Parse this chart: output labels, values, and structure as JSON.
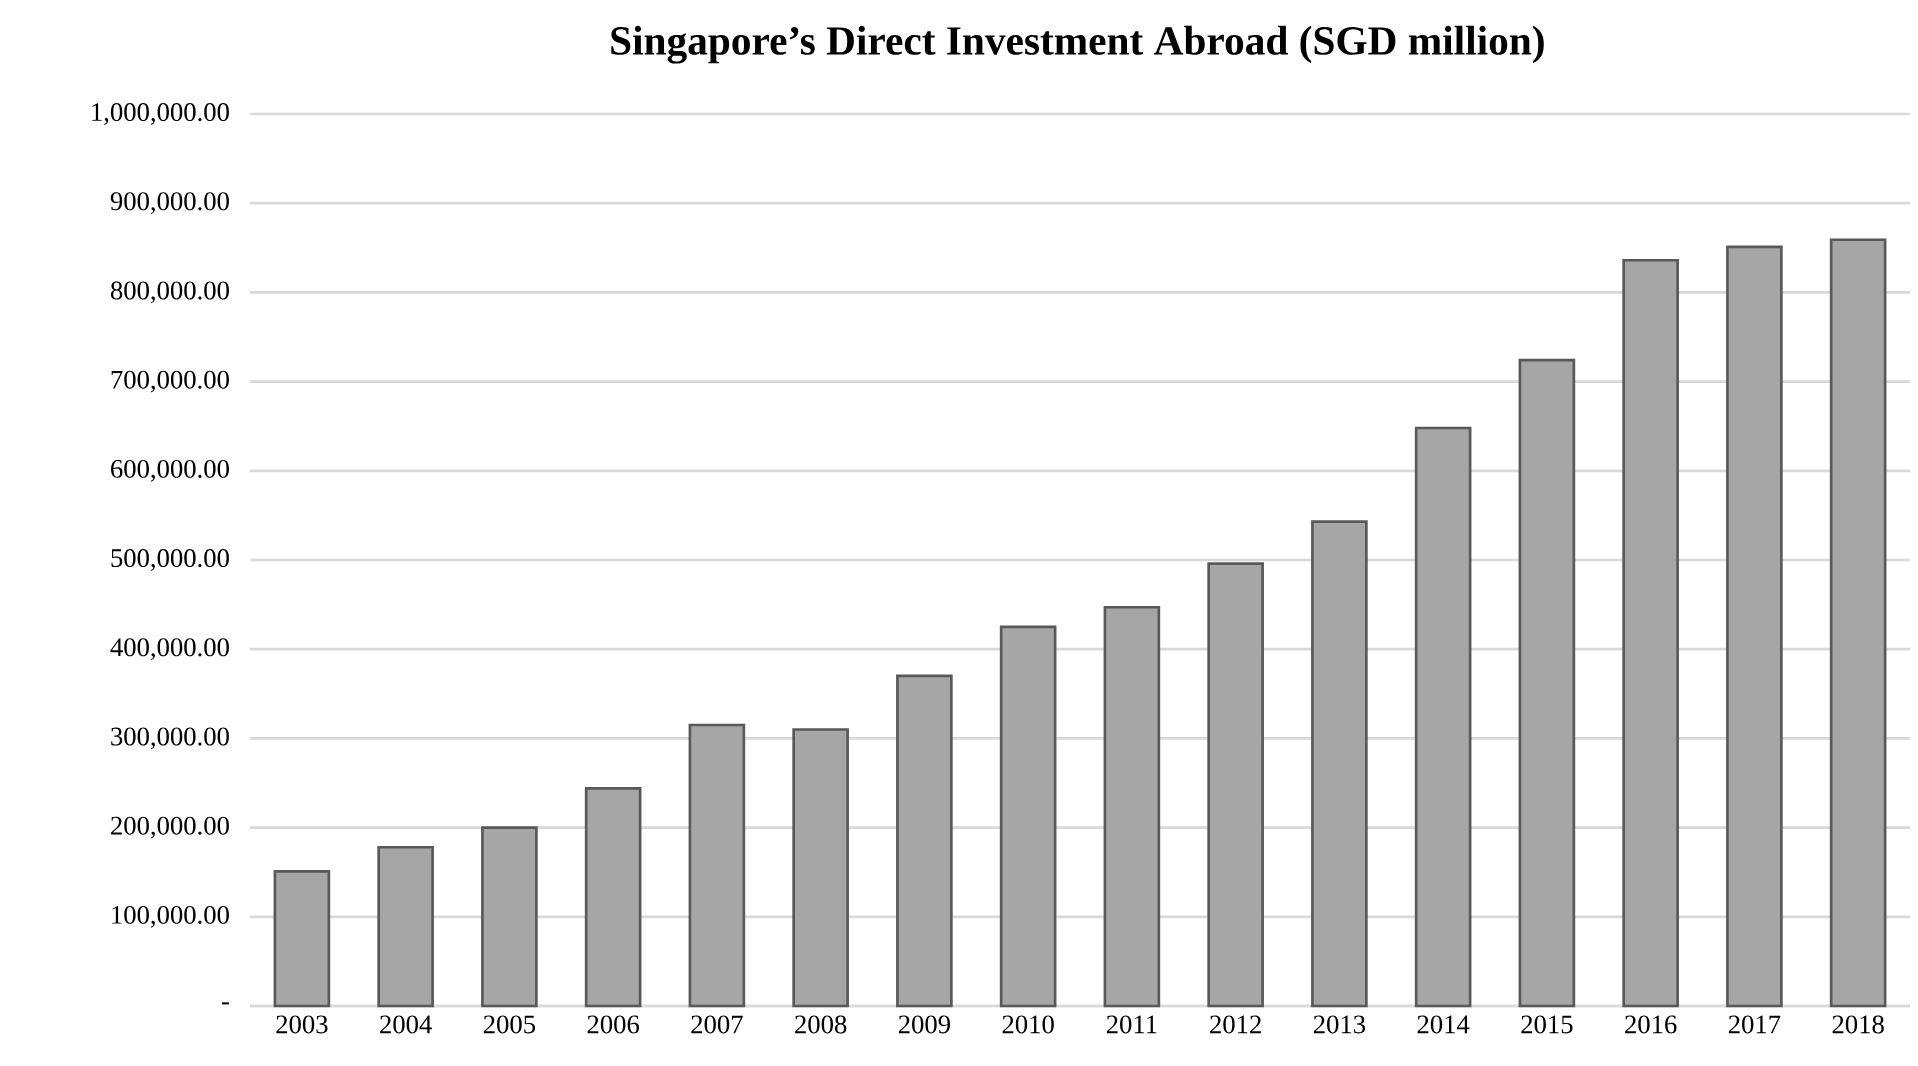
{
  "chart_data": {
    "type": "bar",
    "title": "Singapore’s Direct Investment Abroad (SGD million)",
    "categories": [
      "2003",
      "2004",
      "2005",
      "2006",
      "2007",
      "2008",
      "2009",
      "2010",
      "2011",
      "2012",
      "2013",
      "2014",
      "2015",
      "2016",
      "2017",
      "2018"
    ],
    "values": [
      151000,
      178000,
      200000,
      244000,
      315000,
      310000,
      370000,
      425000,
      447000,
      496000,
      543000,
      648000,
      724000,
      836000,
      851000,
      859000
    ],
    "color": "#a6a6a6",
    "ylim": [
      0,
      1000000
    ],
    "yticks": [
      {
        "value": 0,
        "label": "-"
      },
      {
        "value": 100000,
        "label": "100,000.00"
      },
      {
        "value": 200000,
        "label": "200,000.00"
      },
      {
        "value": 300000,
        "label": "300,000.00"
      },
      {
        "value": 400000,
        "label": "400,000.00"
      },
      {
        "value": 500000,
        "label": "500,000.00"
      },
      {
        "value": 600000,
        "label": "600,000.00"
      },
      {
        "value": 700000,
        "label": "700,000.00"
      },
      {
        "value": 800000,
        "label": "800,000.00"
      },
      {
        "value": 900000,
        "label": "900,000.00"
      },
      {
        "value": 1000000,
        "label": "1,000,000.00"
      }
    ],
    "grid": "y"
  }
}
